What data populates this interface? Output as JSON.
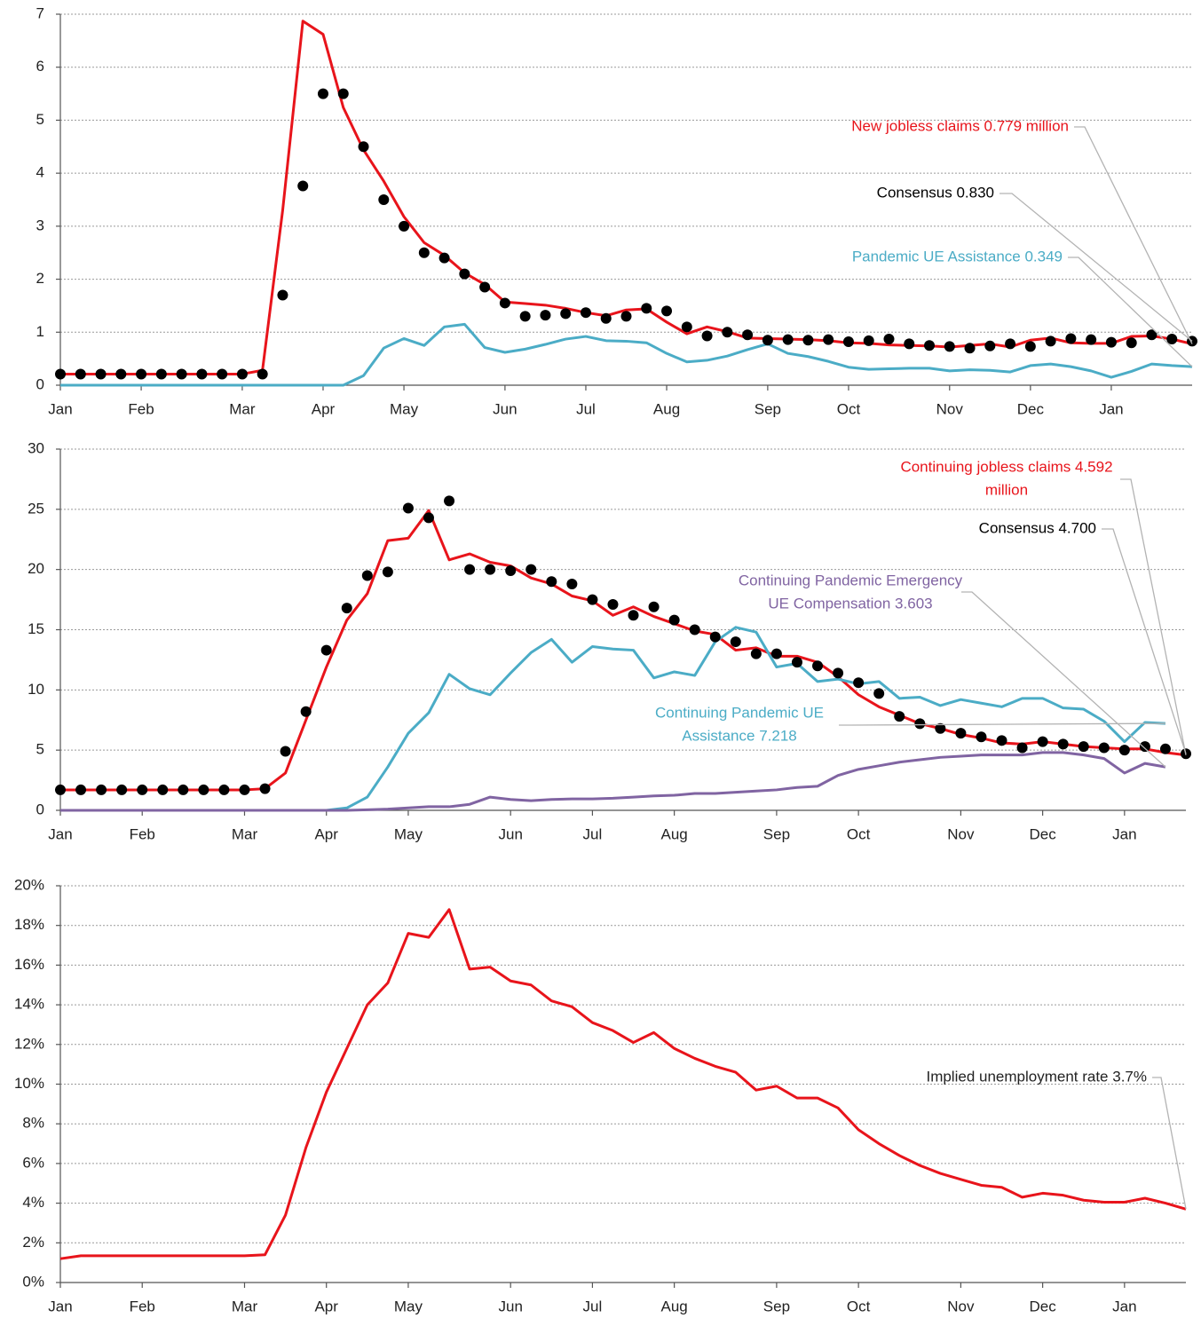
{
  "chart_data": [
    {
      "type": "line",
      "categories": [
        "Jan",
        null,
        null,
        null,
        "Feb",
        null,
        null,
        null,
        null,
        "Mar",
        null,
        null,
        null,
        "Apr",
        null,
        null,
        null,
        "May",
        null,
        null,
        null,
        null,
        "Jun",
        null,
        null,
        null,
        "Jul",
        null,
        null,
        null,
        "Aug",
        null,
        null,
        null,
        null,
        "Sep",
        null,
        null,
        null,
        "Oct",
        null,
        null,
        null,
        null,
        "Nov",
        null,
        null,
        null,
        "Dec",
        null,
        null,
        null,
        "Jan",
        null,
        null,
        null,
        null
      ],
      "ylim": [
        0,
        7
      ],
      "yticks": [
        0,
        1,
        2,
        3,
        4,
        5,
        6,
        7
      ],
      "grid": true,
      "series": [
        {
          "name": "New jobless claims",
          "style": "line",
          "color": "#e8141b",
          "annotation": [
            "New jobless claims 0.779 million"
          ],
          "values": [
            0.21,
            0.21,
            0.21,
            0.21,
            0.21,
            0.21,
            0.21,
            0.21,
            0.21,
            0.21,
            0.28,
            3.3,
            6.87,
            6.62,
            5.24,
            4.44,
            3.85,
            3.18,
            2.69,
            2.45,
            2.12,
            1.9,
            1.57,
            1.54,
            1.51,
            1.45,
            1.37,
            1.31,
            1.42,
            1.44,
            1.19,
            0.97,
            1.1,
            1.01,
            0.89,
            0.88,
            0.87,
            0.86,
            0.84,
            0.8,
            0.79,
            0.76,
            0.75,
            0.74,
            0.72,
            0.75,
            0.78,
            0.72,
            0.85,
            0.89,
            0.8,
            0.79,
            0.79,
            0.92,
            0.93,
            0.87,
            0.779
          ]
        },
        {
          "name": "Consensus",
          "style": "dots",
          "color": "#000000",
          "annotation": [
            "Consensus 0.830"
          ],
          "values": [
            0.21,
            0.21,
            0.21,
            0.21,
            0.21,
            0.21,
            0.21,
            0.21,
            0.21,
            0.21,
            0.21,
            1.7,
            3.76,
            5.5,
            5.5,
            4.5,
            3.5,
            3.0,
            2.5,
            2.4,
            2.1,
            1.85,
            1.55,
            1.3,
            1.32,
            1.35,
            1.37,
            1.26,
            1.3,
            1.45,
            1.4,
            1.1,
            0.93,
            1.0,
            0.95,
            0.85,
            0.86,
            0.85,
            0.86,
            0.82,
            0.84,
            0.87,
            0.78,
            0.75,
            0.73,
            0.7,
            0.74,
            0.78,
            0.73,
            0.83,
            0.88,
            0.86,
            0.81,
            0.8,
            0.95,
            0.87,
            0.83
          ]
        },
        {
          "name": "Pandemic UE Assistance",
          "style": "line",
          "color": "#4bacc6",
          "annotation": [
            "Pandemic UE Assistance 0.349"
          ],
          "values": [
            0,
            0,
            0,
            0,
            0,
            0,
            0,
            0,
            0,
            0,
            0,
            0,
            0,
            0,
            0,
            0.18,
            0.7,
            0.88,
            0.75,
            1.1,
            1.15,
            0.71,
            0.62,
            0.68,
            0.77,
            0.87,
            0.92,
            0.84,
            0.83,
            0.8,
            0.6,
            0.44,
            0.47,
            0.55,
            0.67,
            0.78,
            0.6,
            0.54,
            0.45,
            0.34,
            0.3,
            0.31,
            0.32,
            0.32,
            0.27,
            0.29,
            0.28,
            0.25,
            0.37,
            0.4,
            0.35,
            0.27,
            0.15,
            0.26,
            0.4,
            0.37,
            0.349
          ]
        }
      ]
    },
    {
      "type": "line",
      "categories": [
        "Jan",
        null,
        null,
        null,
        "Feb",
        null,
        null,
        null,
        null,
        "Mar",
        null,
        null,
        null,
        "Apr",
        null,
        null,
        null,
        "May",
        null,
        null,
        null,
        null,
        "Jun",
        null,
        null,
        null,
        "Jul",
        null,
        null,
        null,
        "Aug",
        null,
        null,
        null,
        null,
        "Sep",
        null,
        null,
        null,
        "Oct",
        null,
        null,
        null,
        null,
        "Nov",
        null,
        null,
        null,
        "Dec",
        null,
        null,
        null,
        "Jan",
        null,
        null,
        null
      ],
      "ylim": [
        0,
        30
      ],
      "yticks": [
        0,
        5,
        10,
        15,
        20,
        25,
        30
      ],
      "grid": true,
      "series": [
        {
          "name": "Continuing jobless claims",
          "style": "line",
          "color": "#e8141b",
          "annotation": [
            "Continuing jobless claims 4.592",
            "million"
          ],
          "values": [
            1.7,
            1.7,
            1.7,
            1.7,
            1.7,
            1.7,
            1.7,
            1.7,
            1.7,
            1.7,
            1.8,
            3.1,
            7.5,
            11.9,
            15.8,
            18.0,
            22.4,
            22.6,
            24.9,
            20.8,
            21.3,
            20.6,
            20.3,
            19.3,
            18.8,
            17.8,
            17.4,
            16.2,
            16.9,
            16.1,
            15.5,
            14.9,
            14.6,
            13.3,
            13.5,
            12.8,
            12.8,
            12.3,
            11.1,
            9.6,
            8.6,
            7.9,
            7.2,
            6.8,
            6.3,
            6.0,
            5.6,
            5.5,
            5.7,
            5.5,
            5.3,
            5.2,
            5.1,
            5.1,
            4.8,
            4.592
          ]
        },
        {
          "name": "Consensus",
          "style": "dots",
          "color": "#000000",
          "annotation": [
            "Consensus 4.700"
          ],
          "values": [
            1.7,
            1.7,
            1.7,
            1.7,
            1.7,
            1.7,
            1.7,
            1.7,
            1.7,
            1.7,
            1.8,
            4.9,
            8.2,
            13.3,
            16.8,
            19.5,
            19.8,
            25.1,
            24.3,
            25.7,
            20.0,
            20.0,
            19.9,
            20.0,
            19.0,
            18.8,
            17.5,
            17.1,
            16.2,
            16.9,
            15.8,
            15.0,
            14.4,
            14.0,
            13.0,
            13.0,
            12.3,
            12.0,
            11.4,
            10.6,
            9.7,
            7.8,
            7.2,
            6.8,
            6.4,
            6.1,
            5.8,
            5.2,
            5.7,
            5.5,
            5.3,
            5.2,
            5.0,
            5.3,
            5.1,
            4.7
          ]
        },
        {
          "name": "Continuing Pandemic UE Assistance",
          "style": "line",
          "color": "#4bacc6",
          "annotation": [
            "Continuing Pandemic UE",
            "Assistance 7.218"
          ],
          "values": [
            0,
            0,
            0,
            0,
            0,
            0,
            0,
            0,
            0,
            0,
            0,
            0,
            0,
            0,
            0.2,
            1.1,
            3.6,
            6.4,
            8.1,
            11.3,
            10.1,
            9.6,
            11.4,
            13.1,
            14.2,
            12.3,
            13.6,
            13.4,
            13.3,
            11.0,
            11.5,
            11.2,
            14.0,
            15.2,
            14.8,
            11.9,
            12.2,
            10.7,
            10.9,
            10.5,
            10.7,
            9.3,
            9.4,
            8.7,
            9.2,
            8.9,
            8.6,
            9.3,
            9.3,
            8.5,
            8.4,
            7.4,
            5.7,
            7.3,
            7.218,
            null
          ]
        },
        {
          "name": "Continuing Pandemic Emergency UE Compensation",
          "style": "line",
          "color": "#8064a2",
          "annotation": [
            "Continuing Pandemic Emergency",
            "UE Compensation 3.603"
          ],
          "values": [
            0,
            0,
            0,
            0,
            0,
            0,
            0,
            0,
            0,
            0,
            0,
            0,
            0,
            0,
            0,
            0.05,
            0.1,
            0.2,
            0.3,
            0.3,
            0.5,
            1.1,
            0.9,
            0.8,
            0.9,
            0.95,
            0.95,
            1.0,
            1.1,
            1.2,
            1.25,
            1.4,
            1.4,
            1.5,
            1.6,
            1.7,
            1.9,
            2.0,
            2.9,
            3.4,
            3.7,
            4.0,
            4.2,
            4.4,
            4.5,
            4.6,
            4.6,
            4.6,
            4.8,
            4.8,
            4.6,
            4.3,
            3.1,
            3.9,
            3.603,
            null
          ]
        }
      ]
    },
    {
      "type": "line",
      "categories": [
        "Jan",
        null,
        null,
        null,
        "Feb",
        null,
        null,
        null,
        null,
        "Mar",
        null,
        null,
        null,
        "Apr",
        null,
        null,
        null,
        "May",
        null,
        null,
        null,
        null,
        "Jun",
        null,
        null,
        null,
        "Jul",
        null,
        null,
        null,
        "Aug",
        null,
        null,
        null,
        null,
        "Sep",
        null,
        null,
        null,
        "Oct",
        null,
        null,
        null,
        null,
        "Nov",
        null,
        null,
        null,
        "Dec",
        null,
        null,
        null,
        "Jan",
        null,
        null,
        null
      ],
      "ylim": [
        0,
        20
      ],
      "yticks": [
        {
          "value": 0,
          "label": "0%"
        },
        {
          "value": 2,
          "label": "2%"
        },
        {
          "value": 4,
          "label": "4%"
        },
        {
          "value": 6,
          "label": "6%"
        },
        {
          "value": 8,
          "label": "8%"
        },
        {
          "value": 10,
          "label": "10%"
        },
        {
          "value": 12,
          "label": "12%"
        },
        {
          "value": 14,
          "label": "14%"
        },
        {
          "value": 16,
          "label": "16%"
        },
        {
          "value": 18,
          "label": "18%"
        },
        {
          "value": 20,
          "label": "20%"
        }
      ],
      "grid": true,
      "series": [
        {
          "name": "Implied unemployment rate",
          "style": "line",
          "color": "#e8141b",
          "label_color": "#222222",
          "annotation": [
            "Implied unemployment rate 3.7%"
          ],
          "values": [
            1.2,
            1.35,
            1.35,
            1.35,
            1.35,
            1.35,
            1.35,
            1.35,
            1.35,
            1.35,
            1.4,
            3.4,
            6.8,
            9.6,
            11.8,
            14.0,
            15.1,
            17.6,
            17.4,
            18.8,
            15.8,
            15.9,
            15.2,
            15.0,
            14.2,
            13.9,
            13.1,
            12.7,
            12.1,
            12.6,
            11.8,
            11.3,
            10.9,
            10.6,
            9.7,
            9.9,
            9.3,
            9.3,
            8.8,
            7.7,
            7.0,
            6.4,
            5.9,
            5.5,
            5.2,
            4.9,
            4.8,
            4.3,
            4.5,
            4.4,
            4.15,
            4.05,
            4.05,
            4.25,
            4.0,
            3.7
          ]
        }
      ]
    }
  ]
}
